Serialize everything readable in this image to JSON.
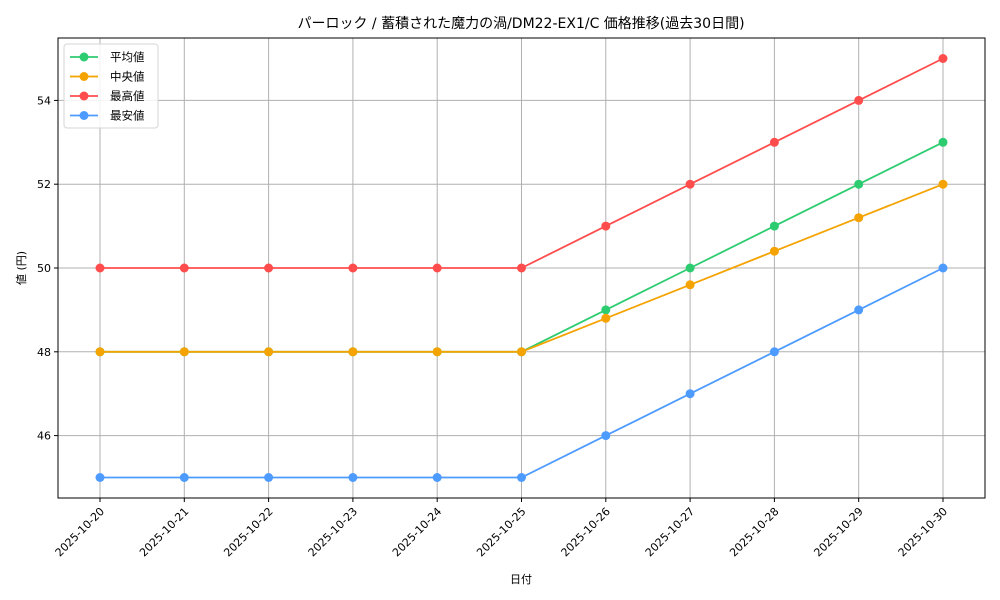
{
  "chart_data": {
    "type": "line",
    "title": "パーロック / 蓄積された魔力の渦/DM22-EX1/C 価格推移(過去30日間)",
    "xlabel": "日付",
    "ylabel": "値 (円)",
    "x": [
      "2025-10-20",
      "2025-10-21",
      "2025-10-22",
      "2025-10-23",
      "2025-10-24",
      "2025-10-25",
      "2025-10-26",
      "2025-10-27",
      "2025-10-28",
      "2025-10-29",
      "2025-10-30"
    ],
    "series": [
      {
        "name": "平均値",
        "color": "#2ecc71",
        "values": [
          48,
          48,
          48,
          48,
          48,
          48,
          49,
          50,
          51,
          52,
          53
        ]
      },
      {
        "name": "中央値",
        "color": "#f5a300",
        "values": [
          48,
          48,
          48,
          48,
          48,
          48,
          48.8,
          49.6,
          50.4,
          51.2,
          52
        ]
      },
      {
        "name": "最高値",
        "color": "#ff4d4d",
        "values": [
          50,
          50,
          50,
          50,
          50,
          50,
          51,
          52,
          53,
          54,
          55
        ]
      },
      {
        "name": "最安値",
        "color": "#4d9bff",
        "values": [
          45,
          45,
          45,
          45,
          45,
          45,
          46,
          47,
          48,
          49,
          50
        ]
      }
    ],
    "yticks": [
      46,
      48,
      50,
      52,
      54
    ],
    "ylim": [
      44.5,
      55.5
    ],
    "grid": true,
    "legend_position": "upper left",
    "marker": "circle"
  }
}
